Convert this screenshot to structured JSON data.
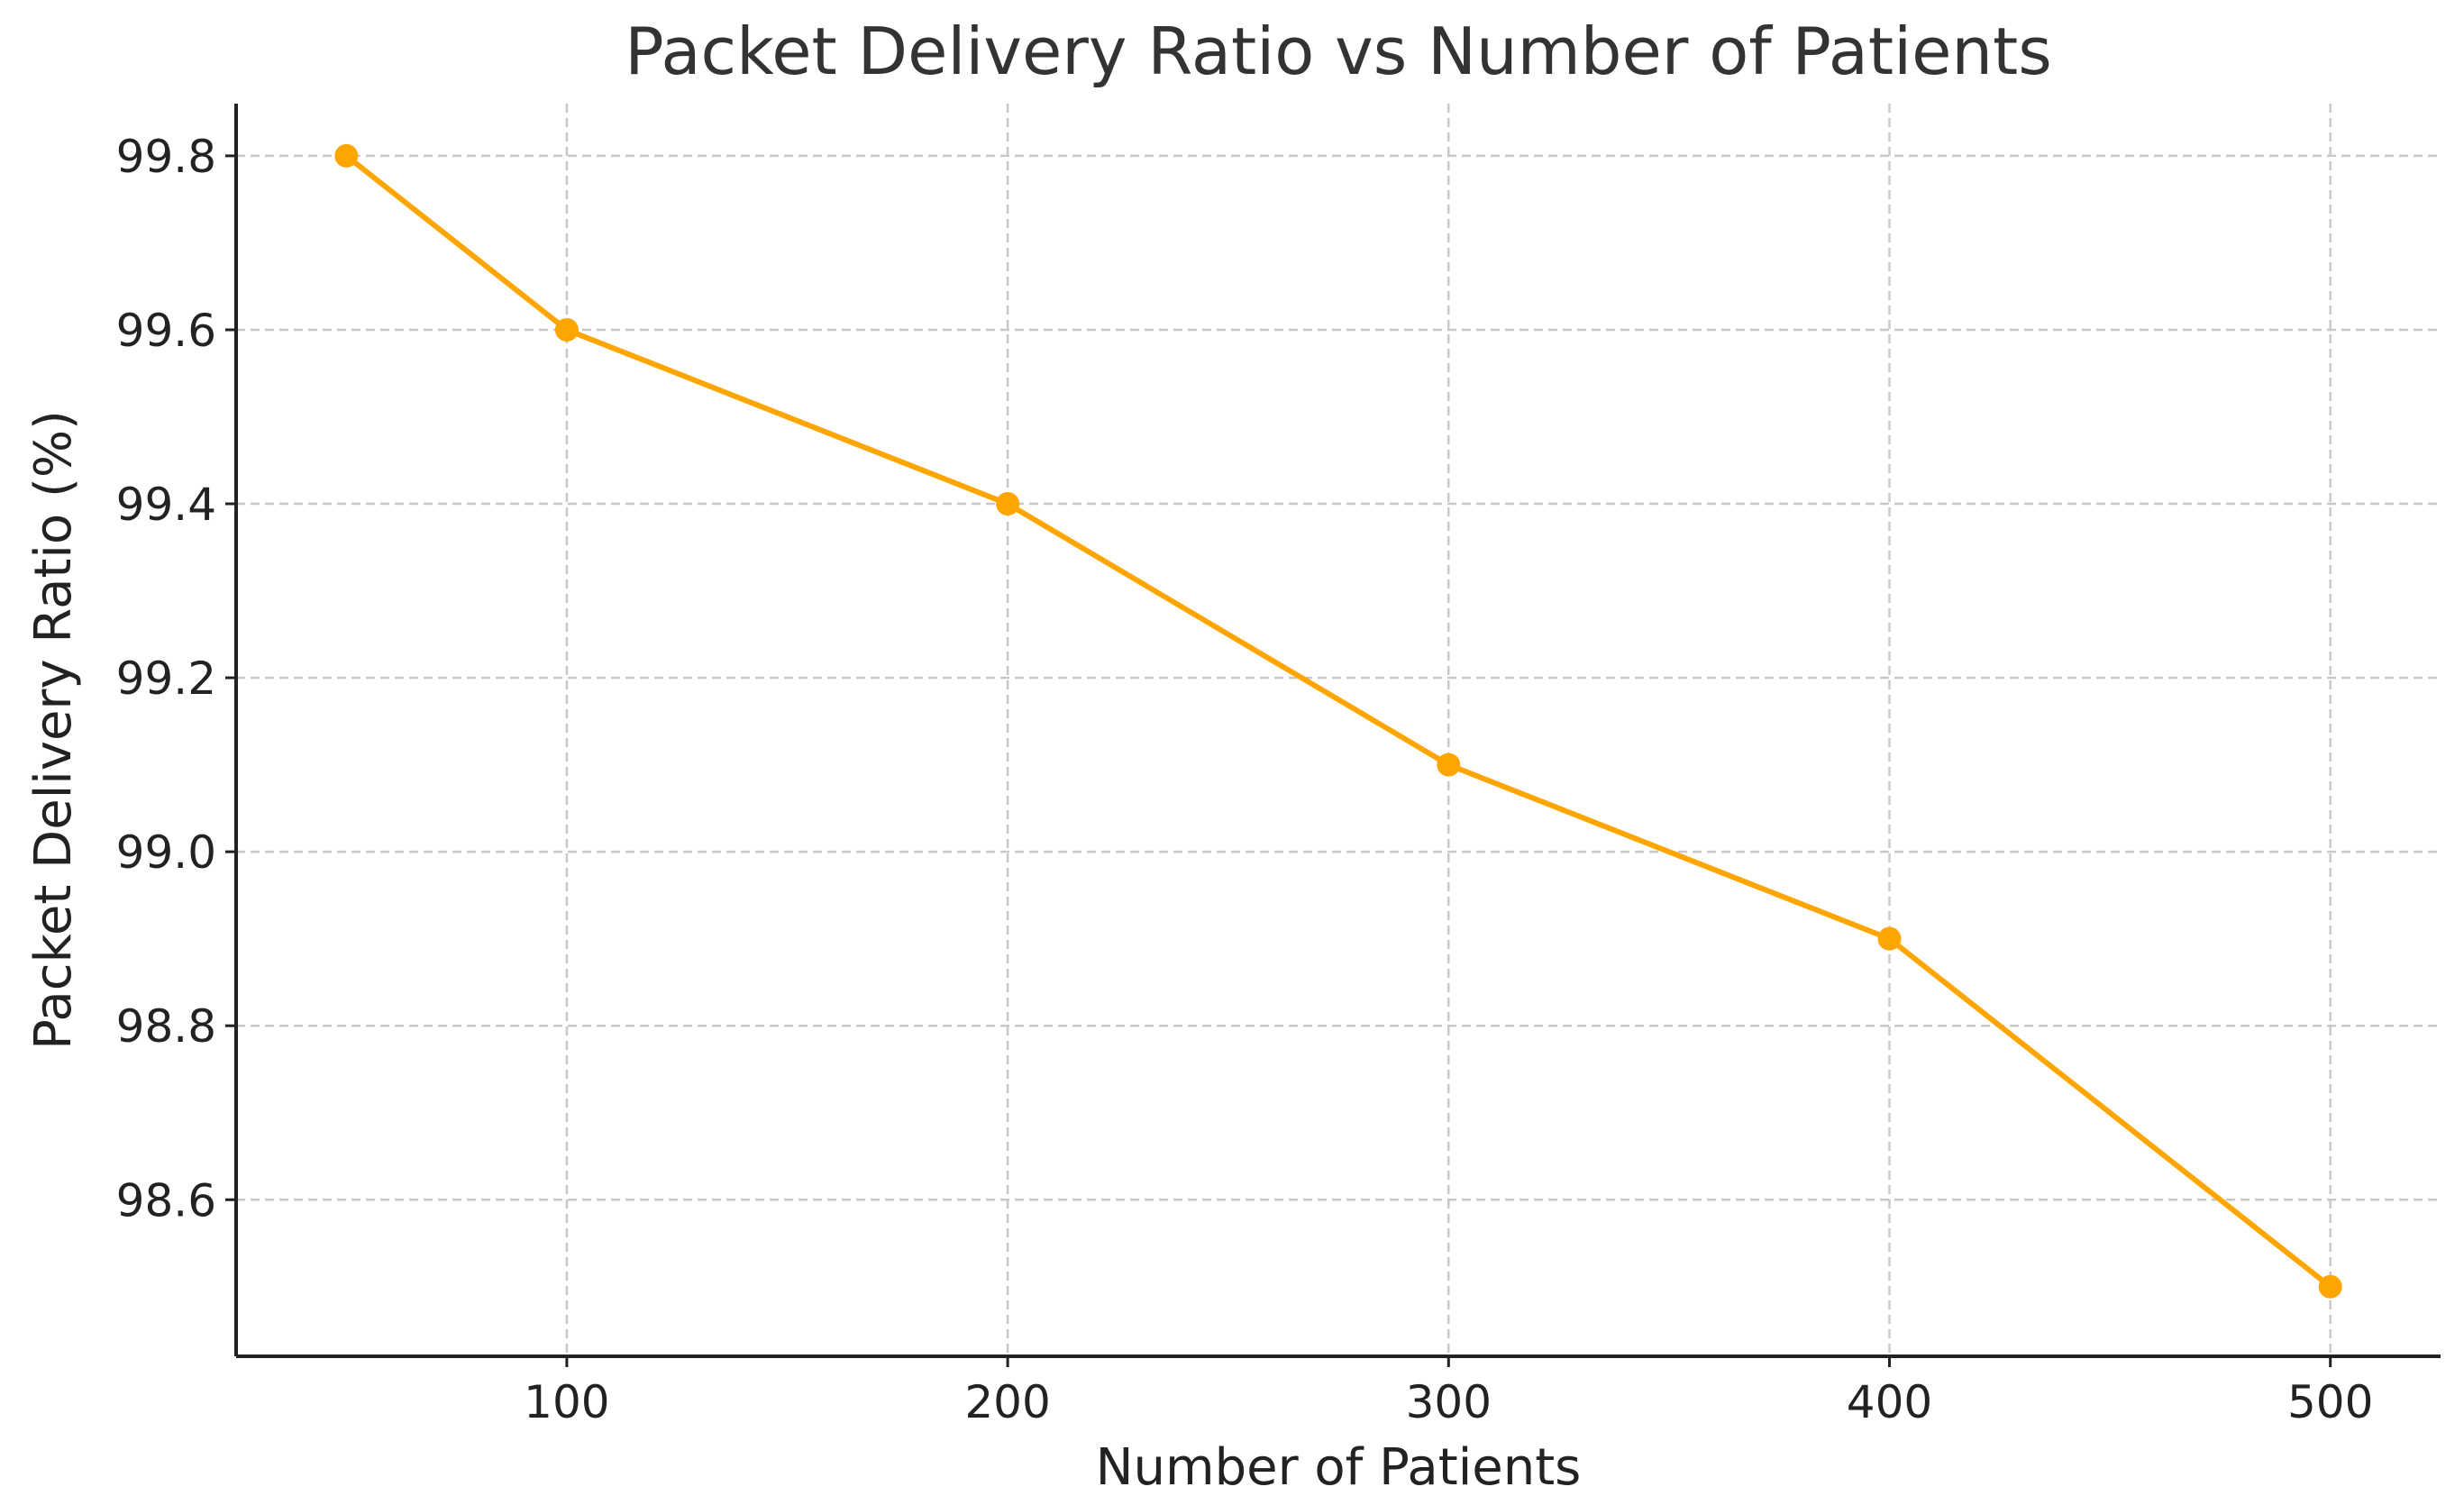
{
  "chart_data": {
    "type": "line",
    "title": "Packet Delivery Ratio vs Number of Patients",
    "xlabel": "Number of Patients",
    "ylabel": "Packet Delivery Ratio (%)",
    "xlim": [
      25,
      525
    ],
    "ylim": [
      98.42,
      99.86
    ],
    "x_ticks": [
      100,
      200,
      300,
      400,
      500
    ],
    "x_tick_labels": [
      "100",
      "200",
      "300",
      "400",
      "500"
    ],
    "y_ticks": [
      98.6,
      98.8,
      99.0,
      99.2,
      99.4,
      99.6,
      99.8
    ],
    "y_tick_labels": [
      "98.6",
      "98.8",
      "99.0",
      "99.2",
      "99.4",
      "99.6",
      "99.8"
    ],
    "grid": true,
    "series": [
      {
        "color": "#FFA500",
        "marker": "circle",
        "x": [
          50,
          100,
          200,
          300,
          400,
          500
        ],
        "y": [
          99.8,
          99.6,
          99.4,
          99.1,
          98.9,
          98.5
        ]
      }
    ]
  }
}
